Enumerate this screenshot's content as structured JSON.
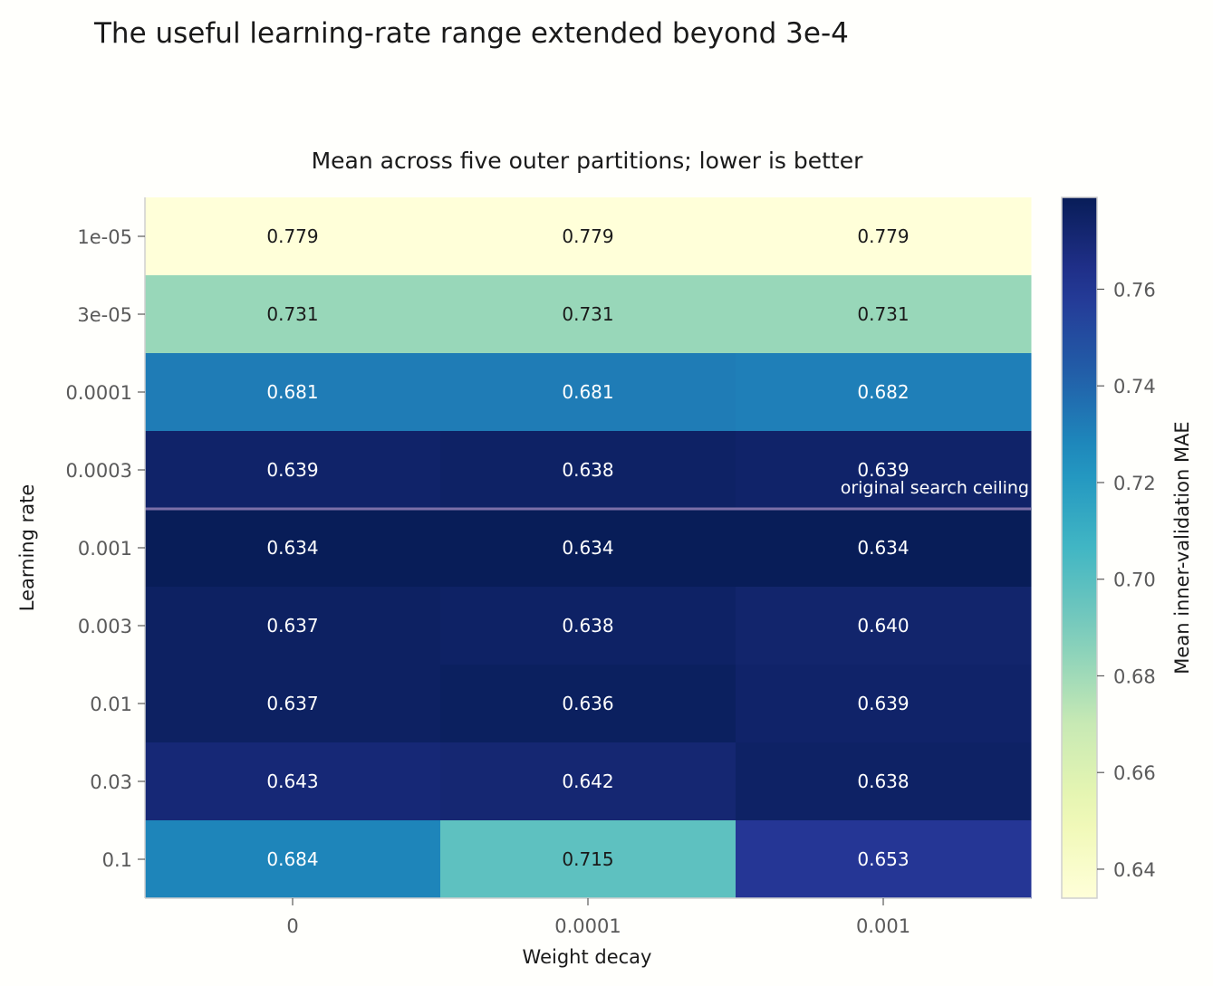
{
  "chart_data": {
    "type": "heatmap",
    "title": "The useful learning-rate range extended beyond 3e-4",
    "subtitle": "Mean across five outer partitions; lower is better",
    "xlabel": "Weight decay",
    "ylabel": "Learning rate",
    "x_categories": [
      "0",
      "0.0001",
      "0.001"
    ],
    "y_categories": [
      "1e-05",
      "3e-05",
      "0.0001",
      "0.0003",
      "0.001",
      "0.003",
      "0.01",
      "0.03",
      "0.1"
    ],
    "values": [
      [
        0.779,
        0.779,
        0.779
      ],
      [
        0.731,
        0.731,
        0.731
      ],
      [
        0.681,
        0.681,
        0.682
      ],
      [
        0.639,
        0.638,
        0.639
      ],
      [
        0.634,
        0.634,
        0.634
      ],
      [
        0.637,
        0.638,
        0.64
      ],
      [
        0.637,
        0.636,
        0.639
      ],
      [
        0.643,
        0.642,
        0.638
      ],
      [
        0.684,
        0.715,
        0.653
      ]
    ],
    "labels": [
      [
        "0.779",
        "0.779",
        "0.779"
      ],
      [
        "0.731",
        "0.731",
        "0.731"
      ],
      [
        "0.681",
        "0.681",
        "0.682"
      ],
      [
        "0.639",
        "0.638",
        "0.639"
      ],
      [
        "0.634",
        "0.634",
        "0.634"
      ],
      [
        "0.637",
        "0.638",
        "0.640"
      ],
      [
        "0.637",
        "0.636",
        "0.639"
      ],
      [
        "0.643",
        "0.642",
        "0.638"
      ],
      [
        "0.684",
        "0.715",
        "0.653"
      ]
    ],
    "colormap": "YlGnBu",
    "colorbar": {
      "label": "Mean inner-validation MAE",
      "range": [
        0.634,
        0.779
      ],
      "ticks": [
        0.64,
        0.66,
        0.68,
        0.7,
        0.72,
        0.74,
        0.76
      ],
      "tick_labels": [
        "0.64",
        "0.66",
        "0.68",
        "0.70",
        "0.72",
        "0.74",
        "0.76"
      ]
    },
    "annotation": {
      "text": "original search ceiling",
      "between_rows": [
        "0.0003",
        "0.001"
      ],
      "line_color": "#7b6fa8"
    }
  }
}
